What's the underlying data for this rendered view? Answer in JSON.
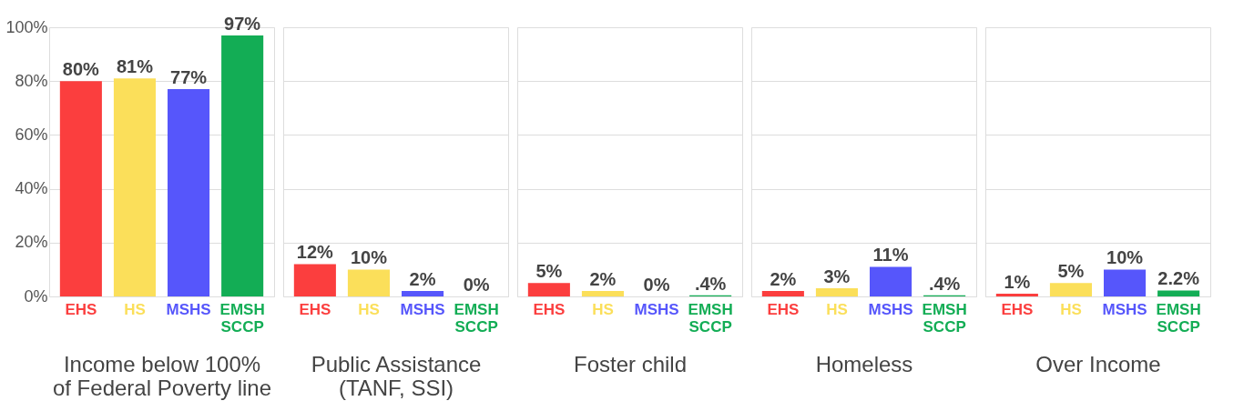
{
  "chart_data": [
    {
      "type": "bar",
      "xlabel": "Income below 100%\nof Federal Poverty line",
      "categories": [
        "EHS",
        "HS",
        "MSHS",
        "EMSH SCCP"
      ],
      "colors": [
        "#fb3e3e",
        "#fbdf5a",
        "#5656fb",
        "#13ad55"
      ],
      "values": [
        80,
        81,
        77,
        97
      ],
      "value_labels": [
        "80%",
        "81%",
        "77%",
        "97%"
      ],
      "ylim": [
        0,
        100
      ],
      "yticks": [
        {
          "value": 0,
          "label": "0%"
        },
        {
          "value": 20,
          "label": "20%"
        },
        {
          "value": 40,
          "label": "40%"
        },
        {
          "value": 60,
          "label": "60%"
        },
        {
          "value": 80,
          "label": "80%"
        },
        {
          "value": 100,
          "label": "100%"
        }
      ],
      "grid": "y"
    },
    {
      "type": "bar",
      "xlabel": "Public Assistance\n(TANF, SSI)",
      "categories": [
        "EHS",
        "HS",
        "MSHS",
        "EMSH SCCP"
      ],
      "colors": [
        "#fb3e3e",
        "#fbdf5a",
        "#5656fb",
        "#13ad55"
      ],
      "values": [
        12,
        10,
        2,
        0
      ],
      "value_labels": [
        "12%",
        "10%",
        "2%",
        "0%"
      ],
      "ylim": [
        0,
        100
      ],
      "yticks": [
        0,
        20,
        40,
        60,
        80,
        100
      ],
      "grid": "y",
      "tick_labels": "x"
    },
    {
      "type": "bar",
      "xlabel": "Foster child",
      "categories": [
        "EHS",
        "HS",
        "MSHS",
        "EMSH SCCP"
      ],
      "colors": [
        "#fb3e3e",
        "#fbdf5a",
        "#5656fb",
        "#13ad55"
      ],
      "values": [
        5,
        2,
        0,
        0.4
      ],
      "value_labels": [
        "5%",
        "2%",
        "0%",
        ".4%"
      ],
      "ylim": [
        0,
        100
      ],
      "yticks": [
        0,
        20,
        40,
        60,
        80,
        100
      ],
      "grid": "y",
      "tick_labels": "x"
    },
    {
      "type": "bar",
      "xlabel": "Homeless",
      "categories": [
        "EHS",
        "HS",
        "MSHS",
        "EMSH SCCP"
      ],
      "colors": [
        "#fb3e3e",
        "#fbdf5a",
        "#5656fb",
        "#13ad55"
      ],
      "values": [
        2,
        3,
        11,
        0.4
      ],
      "value_labels": [
        "2%",
        "3%",
        "11%",
        ".4%"
      ],
      "ylim": [
        0,
        100
      ],
      "yticks": [
        0,
        20,
        40,
        60,
        80,
        100
      ],
      "grid": "y",
      "tick_labels": "x"
    },
    {
      "type": "bar",
      "xlabel": "Over Income",
      "categories": [
        "EHS",
        "HS",
        "MSHS",
        "EMSH SCCP"
      ],
      "colors": [
        "#fb3e3e",
        "#fbdf5a",
        "#5656fb",
        "#13ad55"
      ],
      "values": [
        1,
        5,
        10,
        2.2
      ],
      "value_labels": [
        "1%",
        "5%",
        "10%",
        "2.2%"
      ],
      "ylim": [
        0,
        100
      ],
      "yticks": [
        0,
        20,
        40,
        60,
        80,
        100
      ],
      "grid": "y",
      "tick_labels": "x"
    }
  ]
}
